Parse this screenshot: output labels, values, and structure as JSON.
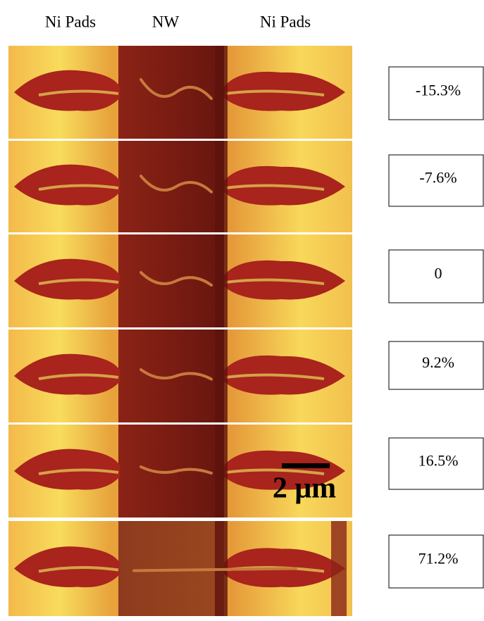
{
  "header": {
    "labels": [
      "Ni Pads",
      "NW",
      "Ni Pads"
    ]
  },
  "panels": [
    {
      "strain": "-15.3%"
    },
    {
      "strain": "-7.6%"
    },
    {
      "strain": "0"
    },
    {
      "strain": "9.2%"
    },
    {
      "strain": "16.5%"
    },
    {
      "strain": "71.2%"
    }
  ],
  "scale_bar": {
    "label": "2 μm"
  }
}
